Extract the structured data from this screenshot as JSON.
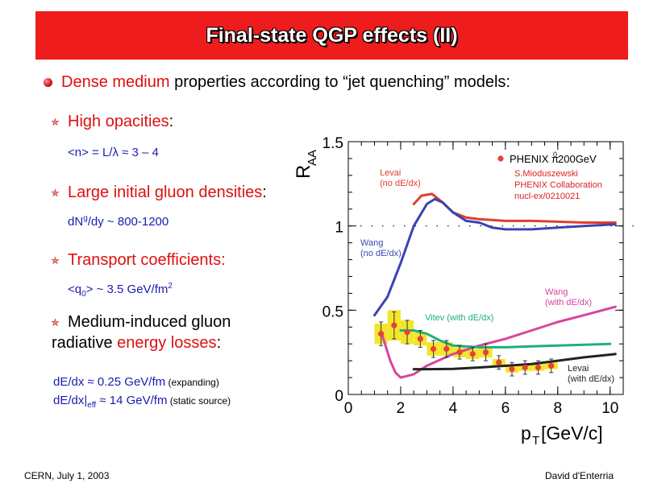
{
  "slide": {
    "title": "Final-state QGP effects (II)",
    "intro_red": "Dense medium",
    "intro_rest": " properties according to “jet quenching” models:",
    "footer_left": "CERN, July 1, 2003",
    "footer_right": "David d'Enterria"
  },
  "bullets": [
    {
      "text": "High opacities",
      "suffix": ":"
    },
    {
      "text": "Large initial gluon densities",
      "suffix": ":"
    },
    {
      "text": "Transport coefficients:",
      "suffix": ""
    },
    {
      "text_before": "Medium-induced gluon",
      "text_line2_before": "radiative ",
      "text_red": "energy losses",
      "suffix": ":"
    }
  ],
  "formulas": {
    "opacity_pre": "<n> = L/",
    "opacity_lambda": "λ",
    "opacity_post": " ≈ 3 – 4",
    "dndy_pre": "dN",
    "dndy_sup": "g",
    "dndy_post": "/dy ~ 800-1200",
    "q_pre": "<q",
    "q_sub": "0",
    "q_post": "> ~ 3.5 GeV/fm",
    "q_sup": "2",
    "dedx1": "dE/dx ≈ 0.25 GeV/fm",
    "dedx1_note": " (expanding)",
    "dedx2_pre": "dE/dx|",
    "dedx2_sub": "eff",
    "dedx2_post": " ≈ 14 GeV/fm",
    "dedx2_note": " (static source)"
  },
  "chart_data": {
    "type": "line",
    "ylabel_main": "R",
    "ylabel_sub": "AA",
    "xlabel_main": "p",
    "xlabel_sub": "T",
    "xlabel_unit": " [GeV/c]",
    "xlim": [
      0,
      10.5
    ],
    "ylim": [
      0,
      1.5
    ],
    "xticks": [
      "0",
      "2",
      "4",
      "6",
      "8",
      "10"
    ],
    "xtick_values": [
      0,
      2,
      4,
      6,
      8,
      10
    ],
    "yticks": [
      "0",
      "0.5",
      "1",
      "1.5"
    ],
    "ytick_values": [
      0,
      0.5,
      1,
      1.5
    ],
    "reference_line": 1.0,
    "legend": {
      "marker_color": "#e8403a",
      "label": "PHENIX π",
      "label_sup": "0",
      "label_post": " 200GeV",
      "credit": [
        "S.Mioduszewski",
        "PHENIX Collaboration",
        "nucl-ex/0210021"
      ]
    },
    "data_points": {
      "x": [
        1.25,
        1.75,
        2.25,
        2.75,
        3.25,
        3.75,
        4.25,
        4.75,
        5.25,
        5.75,
        6.25,
        6.75,
        7.25,
        7.75
      ],
      "y": [
        0.36,
        0.41,
        0.37,
        0.33,
        0.27,
        0.27,
        0.25,
        0.24,
        0.25,
        0.19,
        0.15,
        0.16,
        0.16,
        0.17
      ],
      "err": [
        0.07,
        0.08,
        0.07,
        0.05,
        0.05,
        0.05,
        0.04,
        0.04,
        0.05,
        0.04,
        0.04,
        0.04,
        0.04,
        0.04
      ],
      "box": [
        0.06,
        0.09,
        0.07,
        0.04,
        0.04,
        0.04,
        0.03,
        0.03,
        0.03,
        0.02,
        0.02,
        0.02,
        0.02,
        0.02
      ]
    },
    "series": [
      {
        "key": "levai_nodedx",
        "label_lines": [
          "Levai",
          "(no dE/dx)"
        ],
        "color": "#e23d2e",
        "x": [
          2.5,
          2.8,
          3.2,
          3.6,
          4.0,
          4.5,
          5.0,
          6.0,
          7.0,
          8.0,
          9.0,
          10.2
        ],
        "y": [
          1.13,
          1.18,
          1.19,
          1.14,
          1.08,
          1.05,
          1.04,
          1.03,
          1.03,
          1.025,
          1.02,
          1.02
        ]
      },
      {
        "key": "wang_nodedx",
        "label_lines": [
          "Wang",
          "(no dE/dx)"
        ],
        "color": "#3a44b0",
        "x": [
          1.0,
          1.5,
          2.0,
          2.5,
          3.0,
          3.3,
          3.6,
          4.0,
          4.5,
          5.0,
          5.5,
          6.0,
          7.0,
          8.0,
          9.0,
          10.2
        ],
        "y": [
          0.47,
          0.58,
          0.78,
          1.0,
          1.13,
          1.16,
          1.14,
          1.08,
          1.03,
          1.02,
          0.99,
          0.98,
          0.98,
          0.99,
          1.0,
          1.01
        ]
      },
      {
        "key": "wang_dedx",
        "label_lines": [
          "Wang",
          "(with dE/dx)"
        ],
        "color": "#d9449c",
        "x": [
          1.3,
          1.6,
          1.8,
          2.0,
          2.5,
          3.0,
          4.0,
          5.0,
          6.0,
          7.0,
          8.0,
          9.0,
          10.2
        ],
        "y": [
          0.35,
          0.2,
          0.13,
          0.1,
          0.12,
          0.17,
          0.24,
          0.29,
          0.33,
          0.38,
          0.43,
          0.47,
          0.52
        ]
      },
      {
        "key": "vitev_dedx",
        "label_lines": [
          "Vitev (with dE/dx)"
        ],
        "color": "#1faf7c",
        "x": [
          2.0,
          2.5,
          3.0,
          3.5,
          4.0,
          5.0,
          6.0,
          7.0,
          8.0,
          9.0,
          10.0
        ],
        "y": [
          0.38,
          0.38,
          0.36,
          0.32,
          0.29,
          0.28,
          0.28,
          0.285,
          0.29,
          0.295,
          0.3
        ]
      },
      {
        "key": "levai_dedx",
        "label_lines": [
          "Levai",
          "(with dE/dx)"
        ],
        "color": "#222222",
        "x": [
          2.5,
          3.0,
          4.0,
          5.0,
          6.0,
          7.0,
          8.0,
          9.0,
          10.2
        ],
        "y": [
          0.15,
          0.15,
          0.152,
          0.16,
          0.17,
          0.18,
          0.2,
          0.22,
          0.24
        ]
      }
    ]
  }
}
